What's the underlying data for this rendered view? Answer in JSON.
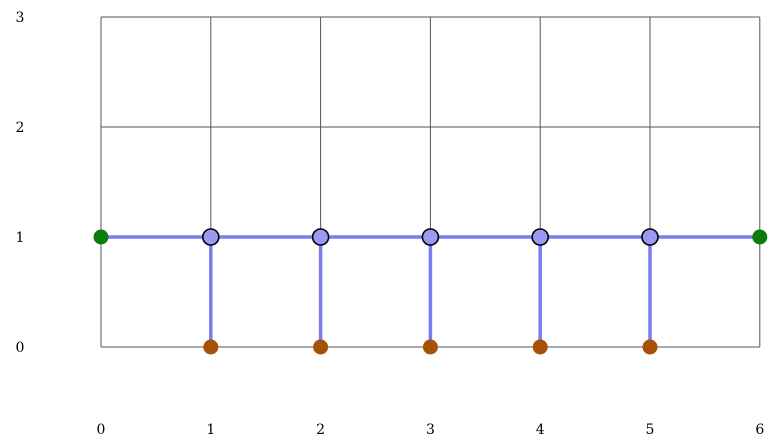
{
  "chart_data": {
    "type": "scatter",
    "x_ticks": [
      "0",
      "1",
      "2",
      "3",
      "4",
      "5",
      "6"
    ],
    "y_ticks": [
      "0",
      "1",
      "2",
      "3"
    ],
    "xlim": [
      0,
      6
    ],
    "ylim": [
      0,
      3
    ],
    "grid": true,
    "colors": {
      "edge": "#7b7bf2",
      "spine_node_fill": "#9a9af5",
      "spine_node_stroke": "#000000",
      "end_node": "#0a7d0a",
      "leaf_node": "#a65106",
      "grid": "#555555"
    },
    "edges": [
      {
        "from": [
          0,
          1
        ],
        "to": [
          6,
          1
        ]
      },
      {
        "from": [
          1,
          1
        ],
        "to": [
          1,
          0
        ]
      },
      {
        "from": [
          2,
          1
        ],
        "to": [
          2,
          0
        ]
      },
      {
        "from": [
          3,
          1
        ],
        "to": [
          3,
          0
        ]
      },
      {
        "from": [
          4,
          1
        ],
        "to": [
          4,
          0
        ]
      },
      {
        "from": [
          5,
          1
        ],
        "to": [
          5,
          0
        ]
      }
    ],
    "nodes": [
      {
        "kind": "end",
        "x": 0,
        "y": 1
      },
      {
        "kind": "end",
        "x": 6,
        "y": 1
      },
      {
        "kind": "spine",
        "x": 1,
        "y": 1
      },
      {
        "kind": "spine",
        "x": 2,
        "y": 1
      },
      {
        "kind": "spine",
        "x": 3,
        "y": 1
      },
      {
        "kind": "spine",
        "x": 4,
        "y": 1
      },
      {
        "kind": "spine",
        "x": 5,
        "y": 1
      },
      {
        "kind": "leaf",
        "x": 1,
        "y": 0
      },
      {
        "kind": "leaf",
        "x": 2,
        "y": 0
      },
      {
        "kind": "leaf",
        "x": 3,
        "y": 0
      },
      {
        "kind": "leaf",
        "x": 4,
        "y": 0
      },
      {
        "kind": "leaf",
        "x": 5,
        "y": 0
      }
    ]
  }
}
